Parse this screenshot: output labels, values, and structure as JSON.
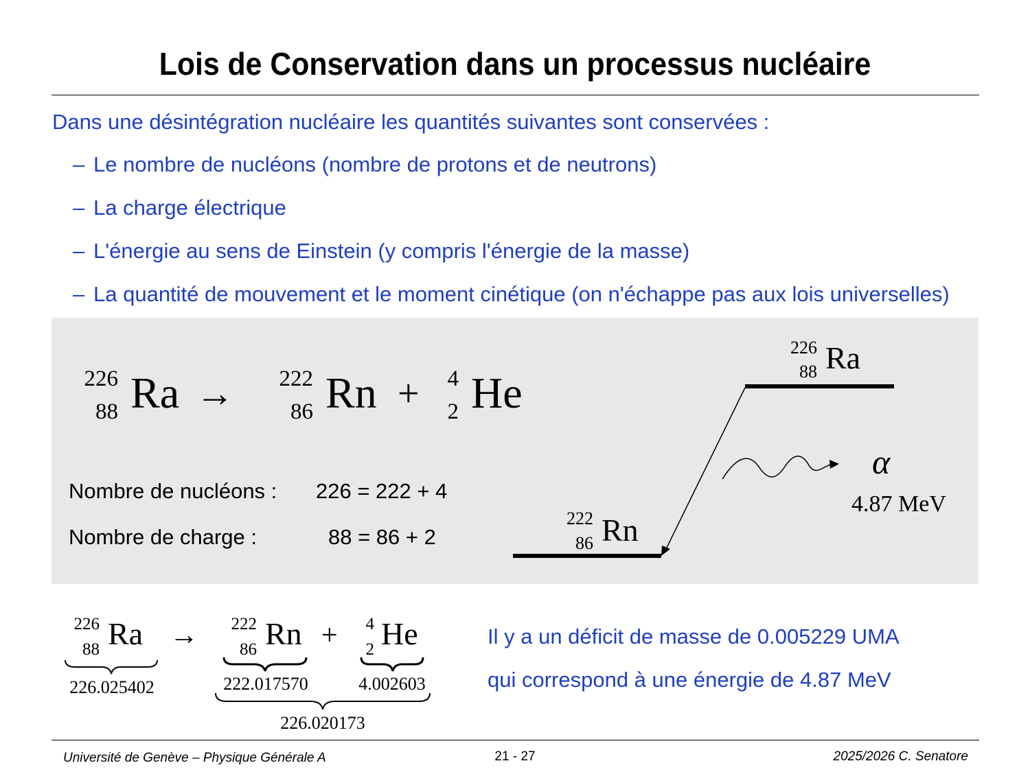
{
  "title": "Lois de Conservation dans un processus nucléaire",
  "intro": "Dans une désintégration nucléaire les quantités suivantes sont conservées :",
  "bullets": [
    "Le nombre de nucléons  (nombre de protons et de neutrons)",
    "La charge électrique",
    "L'énergie au sens de Einstein (y compris l'énergie de la masse)",
    "La quantité de mouvement et le moment cinétique (on n'échappe pas aux lois universelles)"
  ],
  "bullet_marker": "–",
  "reaction": {
    "parent": {
      "A": "226",
      "Z": "88",
      "symbol": "Ra"
    },
    "daughter": {
      "A": "222",
      "Z": "86",
      "symbol": "Rn"
    },
    "alpha": {
      "A": "4",
      "Z": "2",
      "symbol": "He"
    },
    "arrow": "→",
    "plus": "+"
  },
  "conservation": {
    "nucleons_label": "Nombre de nucléons :",
    "nucleons_eq": "226 = 222 + 4",
    "charge_label": "Nombre de charge :",
    "charge_eq": "88 = 86 + 2"
  },
  "level_diagram": {
    "upper": {
      "A": "226",
      "Z": "88",
      "symbol": "Ra"
    },
    "lower": {
      "A": "222",
      "Z": "86",
      "symbol": "Rn"
    },
    "alpha_symbol": "α",
    "energy": "4.87 MeV"
  },
  "masses": {
    "parent": "226.025402",
    "daughter": "222.017570",
    "alpha": "4.002603",
    "sum": "226.020173"
  },
  "deficit": {
    "line1": "Il y a un déficit de masse de 0.005229 UMA",
    "line2": "qui correspond à une énergie de 4.87 MeV"
  },
  "footer": {
    "left": "Université de Genève – Physique Générale A",
    "center": "21 - 27",
    "right": "2025/2026  C. Senatore"
  },
  "colors": {
    "accent": "#1f3fbf",
    "panel": "#e8e8e8"
  }
}
